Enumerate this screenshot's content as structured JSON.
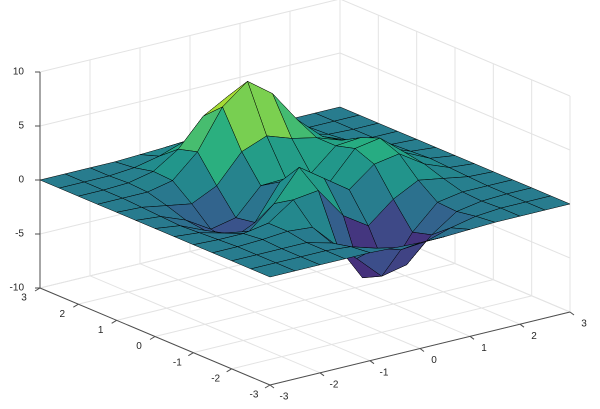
{
  "chart_data": {
    "type": "surface",
    "x": [
      -3,
      -2.5,
      -2,
      -1.5,
      -1,
      -0.5,
      0,
      0.5,
      1,
      1.5,
      2,
      2.5,
      3
    ],
    "y": [
      -3,
      -2.5,
      -2,
      -1.5,
      -1,
      -0.5,
      0,
      0.5,
      1,
      1.5,
      2,
      2.5,
      3
    ],
    "z": [
      [
        0,
        0,
        0,
        0,
        0,
        -0.1,
        -0.2,
        -0.2,
        -0.1,
        0,
        0,
        0,
        0
      ],
      [
        0,
        0,
        0,
        0,
        -0.2,
        -0.9,
        -1.6,
        -1.4,
        -0.7,
        -0.2,
        0,
        0,
        0
      ],
      [
        0,
        0,
        0,
        0,
        -0.6,
        -2.6,
        -4.8,
        -4.3,
        -2.1,
        -0.5,
        -0.1,
        0,
        0
      ],
      [
        0,
        0,
        0.1,
        0.3,
        0.1,
        -2.2,
        -5.7,
        -5.8,
        -2.6,
        -0.4,
        0,
        0,
        0
      ],
      [
        0,
        -0.1,
        -0.1,
        0.3,
        1.9,
        2.2,
        -0.7,
        -2.2,
        -0.3,
        0.9,
        0.5,
        0.1,
        0
      ],
      [
        0,
        -0.2,
        -0.8,
        -1.2,
        0.8,
        3.6,
        2.0,
        0.4,
        2.2,
        2.6,
        1.1,
        0.2,
        0
      ],
      [
        0,
        -0.3,
        -1.3,
        -2.8,
        -1.7,
        1.5,
        1.0,
        0.4,
        2.9,
        3.3,
        1.4,
        0.3,
        0
      ],
      [
        0,
        -0.2,
        -1.1,
        -2.5,
        -2.0,
        0.4,
        0.5,
        0.4,
        2.4,
        2.6,
        1.1,
        0.2,
        0
      ],
      [
        0,
        -0.1,
        -0.5,
        -0.9,
        0.2,
        2.8,
        3.7,
        2.9,
        2.4,
        1.6,
        0.6,
        0.1,
        0
      ],
      [
        0,
        0,
        0,
        0.5,
        2.6,
        6.2,
        8.0,
        6.3,
        3.3,
        1.2,
        0.3,
        0,
        0
      ],
      [
        0,
        0,
        0.1,
        0.6,
        2.1,
        4.6,
        5.9,
        4.6,
        2.2,
        0.7,
        0.1,
        0,
        0
      ],
      [
        0,
        0,
        0,
        0.2,
        0.7,
        1.5,
        1.9,
        1.5,
        0.7,
        0.2,
        0,
        0,
        0
      ],
      [
        0,
        0,
        0,
        0,
        0.1,
        0.2,
        0.3,
        0.2,
        0.1,
        0,
        0,
        0,
        0
      ]
    ],
    "xlim": [
      -3,
      3
    ],
    "ylim": [
      -3,
      3
    ],
    "zlim": [
      -10,
      10
    ],
    "xticks": [
      -3,
      -2,
      -1,
      0,
      1,
      2,
      3
    ],
    "yticks": [
      -3,
      -2,
      -1,
      0,
      1,
      2,
      3
    ],
    "zticks": [
      -10,
      -5,
      0,
      5,
      10
    ],
    "colormap": "viridis",
    "edge_color": "#000000",
    "grid": true
  }
}
